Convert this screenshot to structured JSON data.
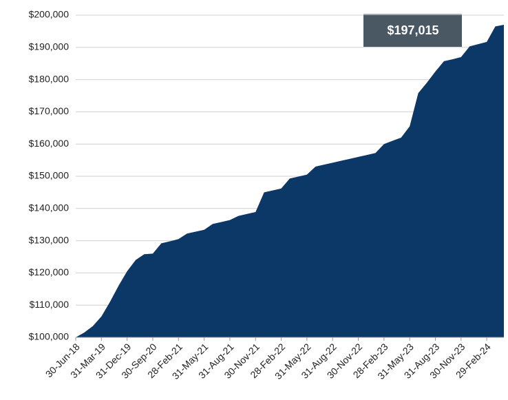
{
  "chart_data": {
    "type": "area",
    "color": "#0b3866",
    "grid": true,
    "annotation": "$197,015",
    "categories": [
      "30-Jun-18",
      null,
      null,
      "31-Mar-19",
      null,
      null,
      "31-Dec-19",
      null,
      null,
      "30-Sep-20",
      null,
      null,
      "28-Feb-21",
      null,
      null,
      "31-May-21",
      null,
      null,
      "31-Aug-21",
      null,
      null,
      "30-Nov-21",
      null,
      null,
      "28-Feb-22",
      null,
      null,
      "31-May-22",
      null,
      null,
      "31-Aug-22",
      null,
      null,
      "30-Nov-22",
      null,
      null,
      "28-Feb-23",
      null,
      null,
      "31-May-23",
      null,
      null,
      "31-Aug-23",
      null,
      null,
      "30-Nov-23",
      null,
      null,
      "29-Feb-24",
      null,
      null
    ],
    "values": [
      100000,
      101500,
      103500,
      106500,
      111000,
      116000,
      120500,
      124000,
      125800,
      126000,
      129200,
      129800,
      130500,
      132200,
      132800,
      133400,
      135200,
      135800,
      136400,
      137700,
      138300,
      138900,
      145000,
      145600,
      146200,
      149300,
      149900,
      150500,
      153000,
      153600,
      154200,
      154800,
      155400,
      156000,
      156600,
      157200,
      160000,
      161000,
      162000,
      165500,
      175800,
      179000,
      182500,
      185700,
      186300,
      187000,
      190300,
      191000,
      191700,
      196500,
      197015
    ],
    "ylim": [
      100000,
      200000
    ],
    "yticks": [
      {
        "value": 100000,
        "label": "$100,000"
      },
      {
        "value": 110000,
        "label": "$110,000"
      },
      {
        "value": 120000,
        "label": "$120,000"
      },
      {
        "value": 130000,
        "label": "$130,000"
      },
      {
        "value": 140000,
        "label": "$140,000"
      },
      {
        "value": 150000,
        "label": "$150,000"
      },
      {
        "value": 160000,
        "label": "$160,000"
      },
      {
        "value": 170000,
        "label": "$170,000"
      },
      {
        "value": 180000,
        "label": "$180,000"
      },
      {
        "value": 190000,
        "label": "$190,000"
      },
      {
        "value": 200000,
        "label": "$200,000"
      }
    ]
  }
}
